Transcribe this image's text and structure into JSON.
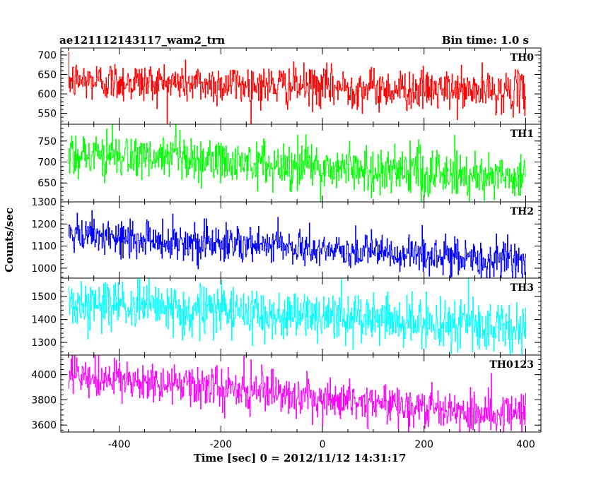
{
  "header": {
    "left_title": "ae121112143117_wam2_trn",
    "right_title": "Bin time: 1.0 s"
  },
  "chart_data": {
    "type": "line",
    "x": {
      "label": "Time [sec] 0 = 2012/11/12 14:31:17",
      "range": [
        -515,
        430
      ],
      "ticks": [
        -400,
        -200,
        0,
        200,
        400
      ]
    },
    "ylabel": "Counts/sec",
    "bin_time_s": 1.0,
    "panels": [
      {
        "name": "TH0",
        "color": "#ff0000",
        "ylim": [
          522,
          718
        ],
        "ticks": [
          550,
          600,
          650,
          700
        ],
        "trend": [
          [
            -500,
            635
          ],
          [
            -300,
            628
          ],
          [
            0,
            618
          ],
          [
            200,
            610
          ],
          [
            400,
            605
          ]
        ],
        "noise_sd": 26,
        "x_range": [
          -500,
          400
        ]
      },
      {
        "name": "TH1",
        "color": "#00ff00",
        "ylim": [
          605,
          790
        ],
        "ticks": [
          650,
          700,
          750
        ],
        "trend": [
          [
            -500,
            722
          ],
          [
            -300,
            705
          ],
          [
            0,
            688
          ],
          [
            200,
            675
          ],
          [
            400,
            665
          ]
        ],
        "noise_sd": 28,
        "x_range": [
          -500,
          400
        ]
      },
      {
        "name": "TH2",
        "color": "#0000ff",
        "ylim": [
          955,
          1300
        ],
        "ticks": [
          1000,
          1100,
          1200,
          1300
        ],
        "trend": [
          [
            -500,
            1145
          ],
          [
            -300,
            1125
          ],
          [
            0,
            1085
          ],
          [
            200,
            1055
          ],
          [
            400,
            1030
          ]
        ],
        "noise_sd": 42,
        "x_range": [
          -500,
          400
        ]
      },
      {
        "name": "TH3",
        "color": "#00ffff",
        "ylim": [
          1245,
          1580
        ],
        "ticks": [
          1300,
          1400,
          1500
        ],
        "trend": [
          [
            -500,
            1470
          ],
          [
            -300,
            1445
          ],
          [
            0,
            1415
          ],
          [
            200,
            1385
          ],
          [
            400,
            1360
          ]
        ],
        "noise_sd": 55,
        "x_range": [
          -500,
          400
        ]
      },
      {
        "name": "TH0123",
        "color": "#ff00ff",
        "ylim": [
          3545,
          4155
        ],
        "ticks": [
          3600,
          3800,
          4000
        ],
        "trend": [
          [
            -500,
            3980
          ],
          [
            -300,
            3920
          ],
          [
            0,
            3820
          ],
          [
            200,
            3740
          ],
          [
            400,
            3690
          ]
        ],
        "noise_sd": 80,
        "x_range": [
          -500,
          400
        ]
      }
    ]
  }
}
